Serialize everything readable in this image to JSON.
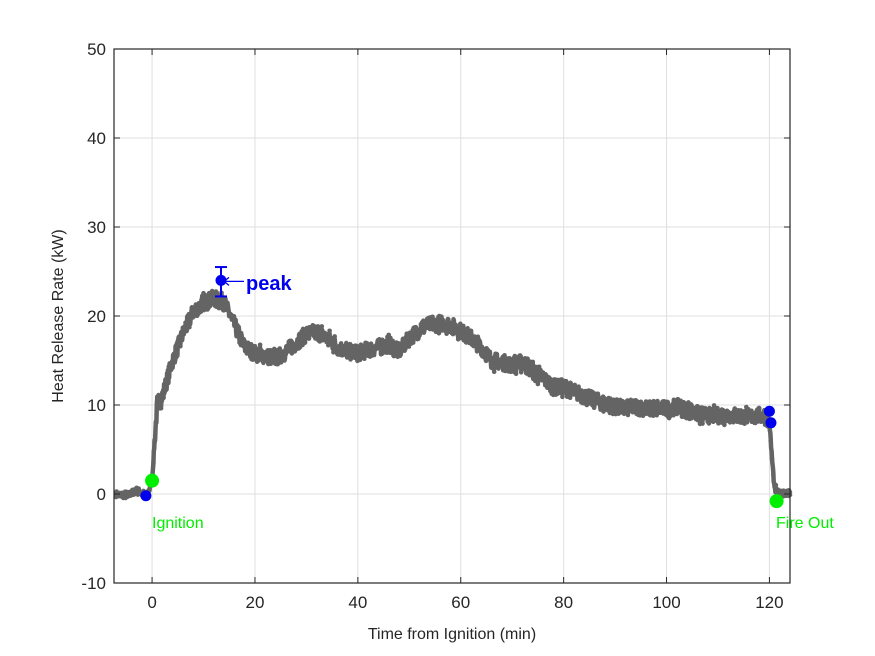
{
  "chart_data": {
    "type": "line",
    "title": "",
    "xlabel": "Time from Ignition (min)",
    "ylabel": "Heat Release Rate (kW)",
    "xlim": [
      -7.4,
      124
    ],
    "ylim": [
      -10,
      50
    ],
    "xticks": [
      0,
      20,
      40,
      60,
      80,
      100,
      120
    ],
    "yticks": [
      -10,
      0,
      10,
      20,
      30,
      40,
      50
    ],
    "grid": true,
    "legend": null,
    "series": [
      {
        "name": "Heat Release Rate",
        "color": "#646464",
        "x": [
          -7,
          -5,
          -3,
          -2,
          -1,
          0,
          0.5,
          1,
          2,
          4,
          6,
          8,
          10,
          12,
          14,
          16,
          18,
          20,
          22,
          24,
          26,
          28,
          30,
          32,
          34,
          36,
          38,
          40,
          42,
          44,
          46,
          48,
          50,
          52,
          54,
          56,
          58,
          60,
          62,
          64,
          66,
          68,
          70,
          72,
          74,
          76,
          78,
          80,
          82,
          84,
          86,
          88,
          90,
          92,
          94,
          96,
          98,
          100,
          102,
          104,
          106,
          108,
          110,
          112,
          114,
          116,
          118,
          119.5,
          120,
          120.5,
          121,
          122,
          124
        ],
        "y": [
          0,
          -0.2,
          0.4,
          0.2,
          -0.2,
          1.5,
          6,
          10,
          11,
          15,
          18,
          20.5,
          21.5,
          22,
          21.5,
          19,
          16.5,
          15.8,
          15.5,
          15.2,
          16,
          17,
          18,
          18.2,
          17.5,
          16.5,
          16,
          15.8,
          16.2,
          16.5,
          16.8,
          16,
          17.5,
          18.5,
          19,
          19.2,
          19,
          18.3,
          17.5,
          16.5,
          15,
          14.8,
          14.5,
          14.8,
          13.8,
          13,
          12,
          12,
          11.5,
          11,
          10.5,
          10.2,
          9.8,
          9.6,
          9.8,
          9.6,
          9.5,
          9.6,
          9.8,
          9.4,
          9.0,
          8.8,
          8.8,
          8.9,
          8.8,
          8.7,
          8.8,
          8.6,
          8.0,
          4,
          0.5,
          0,
          0.2
        ]
      }
    ],
    "markers": [
      {
        "name": "ignition-start",
        "x": -1.2,
        "y": -0.2,
        "color": "#0000ee"
      },
      {
        "name": "ignition",
        "x": 0,
        "y": 1.5,
        "color": "#00ee00"
      },
      {
        "name": "peak",
        "x": 13.4,
        "y": 24.0,
        "color": "#0000ee",
        "error_low": 22.2,
        "error_high": 25.5
      },
      {
        "name": "end-upper",
        "x": 120,
        "y": 9.3,
        "color": "#0000ee"
      },
      {
        "name": "end-lower",
        "x": 120.3,
        "y": 8.0,
        "color": "#0000ee"
      },
      {
        "name": "fire-out",
        "x": 121.4,
        "y": -0.8,
        "color": "#00ee00"
      }
    ],
    "annotations": [
      {
        "text": "Ignition",
        "x": 0,
        "y": -3.3,
        "color": "#00ee00"
      },
      {
        "text": "peak",
        "x": 18.5,
        "y": 24.0,
        "color": "#0000ee"
      },
      {
        "text": "Fire Out",
        "x": 121.5,
        "y": -3.3,
        "color": "#00ee00"
      }
    ]
  },
  "axes": {
    "x_tick_labels": [
      "0",
      "20",
      "40",
      "60",
      "80",
      "100",
      "120"
    ],
    "y_tick_labels": [
      "-10",
      "0",
      "10",
      "20",
      "30",
      "40",
      "50"
    ],
    "xlabel": "Time from Ignition (min)",
    "ylabel": "Heat Release Rate (kW)"
  },
  "annotations": {
    "ignition": "Ignition",
    "peak": "peak",
    "fire_out": "Fire Out"
  }
}
